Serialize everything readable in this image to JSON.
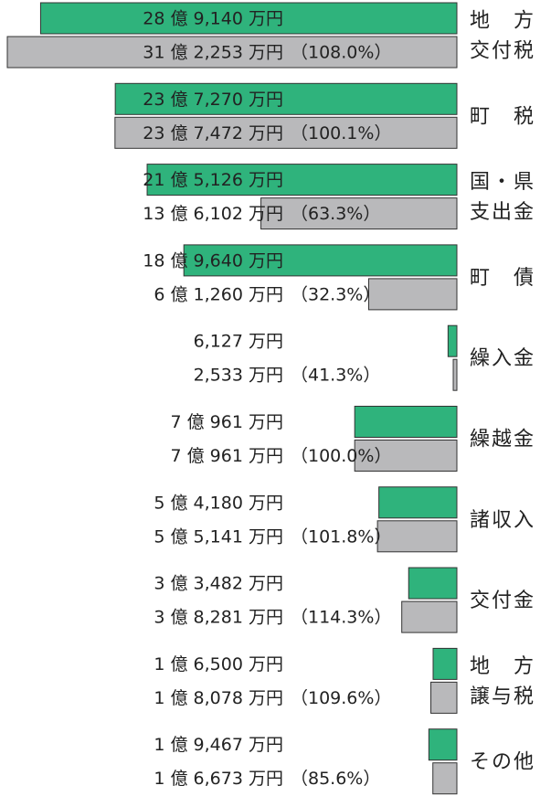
{
  "chart_data": {
    "type": "bar",
    "orientation": "horizontal",
    "categories": [
      [
        "地　方",
        "交付税"
      ],
      [
        "町　税"
      ],
      [
        "国・県",
        "支出金"
      ],
      [
        "町　債"
      ],
      [
        "繰入金"
      ],
      [
        "繰越金"
      ],
      [
        "諸収入"
      ],
      [
        "交付金"
      ],
      [
        "地　方",
        "譲与税"
      ],
      [
        "その他"
      ]
    ],
    "series": [
      {
        "color": "#2fb37c",
        "values": [
          289140,
          237270,
          215126,
          189640,
          6127,
          70961,
          54180,
          33482,
          16500,
          19467
        ],
        "value_labels": [
          "28 億 9,140 万円",
          "23 億 7,270 万円",
          "21 億 5,126 万円",
          "18 億 9,640 万円",
          "6,127 万円",
          "7 億 961 万円",
          "5 億 4,180 万円",
          "3 億 3,482 万円",
          "1 億 6,500 万円",
          "1 億 9,467 万円"
        ]
      },
      {
        "color": "#b9b9bb",
        "values": [
          312253,
          237472,
          136102,
          61260,
          2533,
          70961,
          55141,
          38281,
          18078,
          16673
        ],
        "value_labels": [
          "31 億 2,253 万円",
          "23 億 7,472 万円",
          "13 億 6,102 万円",
          "6 億 1,260 万円",
          "2,533 万円",
          "7 億 961 万円",
          "5 億 5,141 万円",
          "3 億 8,281 万円",
          "1 億 8,078 万円",
          "1 億 6,673 万円"
        ],
        "ratios": [
          108.0,
          100.1,
          63.3,
          32.3,
          41.3,
          100.0,
          101.8,
          114.3,
          109.6,
          85.6
        ],
        "ratio_labels": [
          "（108.0%）",
          "（100.1%）",
          "（63.3%）",
          "（32.3%）",
          "（41.3%）",
          "（100.0%）",
          "（101.8%）",
          "（114.3%）",
          "（109.6%）",
          "（85.6%）"
        ]
      }
    ]
  }
}
